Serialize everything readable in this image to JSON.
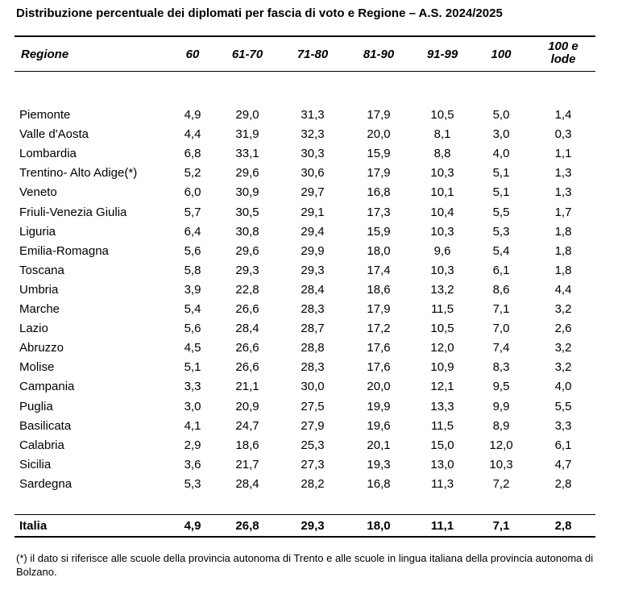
{
  "title": "Distribuzione percentuale dei diplomati per fascia di voto e Regione – A.S. 2024/2025",
  "headers": {
    "region": "Regione",
    "cols": [
      "60",
      "61-70",
      "71-80",
      "81-90",
      "91-99",
      "100",
      "100 e lode"
    ]
  },
  "rows": [
    {
      "region": "Piemonte",
      "values": [
        "4,9",
        "29,0",
        "31,3",
        "17,9",
        "10,5",
        "5,0",
        "1,4"
      ]
    },
    {
      "region": "Valle d'Aosta",
      "values": [
        "4,4",
        "31,9",
        "32,3",
        "20,0",
        "8,1",
        "3,0",
        "0,3"
      ]
    },
    {
      "region": "Lombardia",
      "values": [
        "6,8",
        "33,1",
        "30,3",
        "15,9",
        "8,8",
        "4,0",
        "1,1"
      ]
    },
    {
      "region": "Trentino- Alto Adige(*)",
      "values": [
        "5,2",
        "29,6",
        "30,6",
        "17,9",
        "10,3",
        "5,1",
        "1,3"
      ]
    },
    {
      "region": "Veneto",
      "values": [
        "6,0",
        "30,9",
        "29,7",
        "16,8",
        "10,1",
        "5,1",
        "1,3"
      ]
    },
    {
      "region": "Friuli-Venezia Giulia",
      "values": [
        "5,7",
        "30,5",
        "29,1",
        "17,3",
        "10,4",
        "5,5",
        "1,7"
      ]
    },
    {
      "region": "Liguria",
      "values": [
        "6,4",
        "30,8",
        "29,4",
        "15,9",
        "10,3",
        "5,3",
        "1,8"
      ]
    },
    {
      "region": "Emilia-Romagna",
      "values": [
        "5,6",
        "29,6",
        "29,9",
        "18,0",
        "9,6",
        "5,4",
        "1,8"
      ]
    },
    {
      "region": "Toscana",
      "values": [
        "5,8",
        "29,3",
        "29,3",
        "17,4",
        "10,3",
        "6,1",
        "1,8"
      ]
    },
    {
      "region": "Umbria",
      "values": [
        "3,9",
        "22,8",
        "28,4",
        "18,6",
        "13,2",
        "8,6",
        "4,4"
      ]
    },
    {
      "region": "Marche",
      "values": [
        "5,4",
        "26,6",
        "28,3",
        "17,9",
        "11,5",
        "7,1",
        "3,2"
      ]
    },
    {
      "region": "Lazio",
      "values": [
        "5,6",
        "28,4",
        "28,7",
        "17,2",
        "10,5",
        "7,0",
        "2,6"
      ]
    },
    {
      "region": "Abruzzo",
      "values": [
        "4,5",
        "26,6",
        "28,8",
        "17,6",
        "12,0",
        "7,4",
        "3,2"
      ]
    },
    {
      "region": "Molise",
      "values": [
        "5,1",
        "26,6",
        "28,3",
        "17,6",
        "10,9",
        "8,3",
        "3,2"
      ]
    },
    {
      "region": "Campania",
      "values": [
        "3,3",
        "21,1",
        "30,0",
        "20,0",
        "12,1",
        "9,5",
        "4,0"
      ]
    },
    {
      "region": "Puglia",
      "values": [
        "3,0",
        "20,9",
        "27,5",
        "19,9",
        "13,3",
        "9,9",
        "5,5"
      ]
    },
    {
      "region": "Basilicata",
      "values": [
        "4,1",
        "24,7",
        "27,9",
        "19,6",
        "11,5",
        "8,9",
        "3,3"
      ]
    },
    {
      "region": "Calabria",
      "values": [
        "2,9",
        "18,6",
        "25,3",
        "20,1",
        "15,0",
        "12,0",
        "6,1"
      ]
    },
    {
      "region": "Sicilia",
      "values": [
        "3,6",
        "21,7",
        "27,3",
        "19,3",
        "13,0",
        "10,3",
        "4,7"
      ]
    },
    {
      "region": "Sardegna",
      "values": [
        "5,3",
        "28,4",
        "28,2",
        "16,8",
        "11,3",
        "7,2",
        "2,8"
      ]
    }
  ],
  "total": {
    "region": "Italia",
    "values": [
      "4,9",
      "26,8",
      "29,3",
      "18,0",
      "11,1",
      "7,1",
      "2,8"
    ]
  },
  "footnote": "(*) il dato si riferisce alle scuole della provincia autonoma di Trento e alle scuole in lingua italiana della provincia autonoma di Bolzano."
}
